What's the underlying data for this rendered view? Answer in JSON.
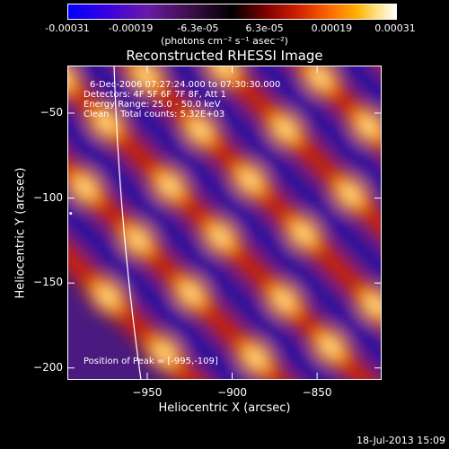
{
  "colorbar": {
    "ticks": [
      "-0.00031",
      "-0.00019",
      "-6.3e-05",
      "6.3e-05",
      "0.00019",
      "0.00031"
    ],
    "tick_values": [
      -0.00031,
      -0.00019,
      -6.3e-05,
      6.3e-05,
      0.00019,
      0.00031
    ],
    "range": [
      -0.00031,
      0.00031
    ],
    "units": "(photons cm⁻² s⁻¹ asec⁻²)",
    "colors": [
      "#0000ff",
      "#6a0dad",
      "#000000",
      "#c00000",
      "#ff7f00",
      "#ffffff"
    ]
  },
  "chart_data": {
    "type": "heatmap",
    "title": "Reconstructed RHESSI Image",
    "xlabel": "Heliocentric X (arcsec)",
    "ylabel": "Heliocentric Y (arcsec)",
    "xlim": [
      -997,
      -812
    ],
    "ylim": [
      -207,
      -22
    ],
    "x_ticks": [
      -950,
      -900,
      -850
    ],
    "y_ticks": [
      -50,
      -100,
      -150,
      -200
    ],
    "x_tick_labels": [
      "−950",
      "−900",
      "−850"
    ],
    "y_tick_labels": [
      "−50",
      "−100",
      "−150",
      "−200"
    ],
    "peak": {
      "x": -995,
      "y": -109
    },
    "colors": {
      "background": "#000000",
      "limb": "#ffffff"
    }
  },
  "annotations": {
    "line1": "6-Dec-2006 07:27:24.000 to 07:30:30.000",
    "line2": "Detectors: 4F 5F 6F 7F 8F, Att 1",
    "line3": "Energy Range: 25.0 - 50.0 keV",
    "line4": "Clean    Total counts: 5.32E+03",
    "peak_label": "Position of Peak = [-995,-109]"
  },
  "footer": {
    "timestamp": "18-Jul-2013 15:09"
  }
}
